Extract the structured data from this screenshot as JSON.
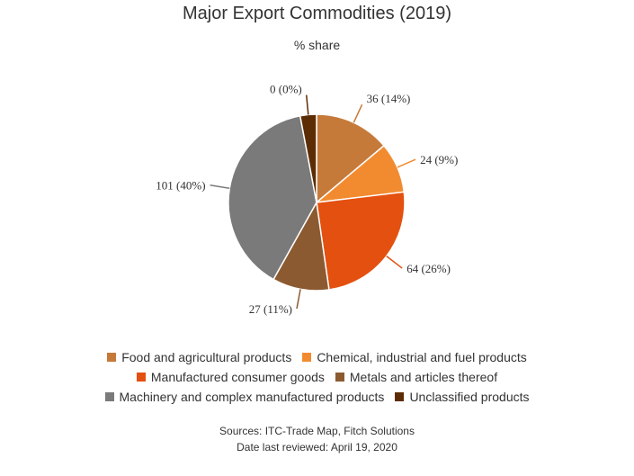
{
  "chart_data": {
    "type": "pie",
    "title": "Major Export Commodities (2019)",
    "subtitle": "% share",
    "slices": [
      {
        "name": "Food and agricultural products",
        "value": 36,
        "percent": 14,
        "label": "36 (14%)",
        "color": "#c67a3a"
      },
      {
        "name": "Chemical, industrial and fuel products",
        "value": 24,
        "percent": 9,
        "label": "24 (9%)",
        "color": "#f28b30"
      },
      {
        "name": "Manufactured consumer goods",
        "value": 64,
        "percent": 26,
        "label": "64 (26%)",
        "color": "#e4500f"
      },
      {
        "name": "Metals and articles thereof",
        "value": 27,
        "percent": 11,
        "label": "27 (11%)",
        "color": "#8c5a30"
      },
      {
        "name": "Machinery and complex manufactured products",
        "value": 101,
        "percent": 40,
        "label": "101 (40%)",
        "color": "#7a7a7a"
      },
      {
        "name": "Unclassified products",
        "value": 0,
        "percent": 0,
        "label": "0 (0%)",
        "color": "#5c2d05",
        "display_share": 0.0299
      }
    ],
    "legend_position": "bottom"
  },
  "sources": {
    "line1": "Sources: ITC-Trade Map, Fitch Solutions",
    "line2": "Date last reviewed: April 19, 2020"
  }
}
